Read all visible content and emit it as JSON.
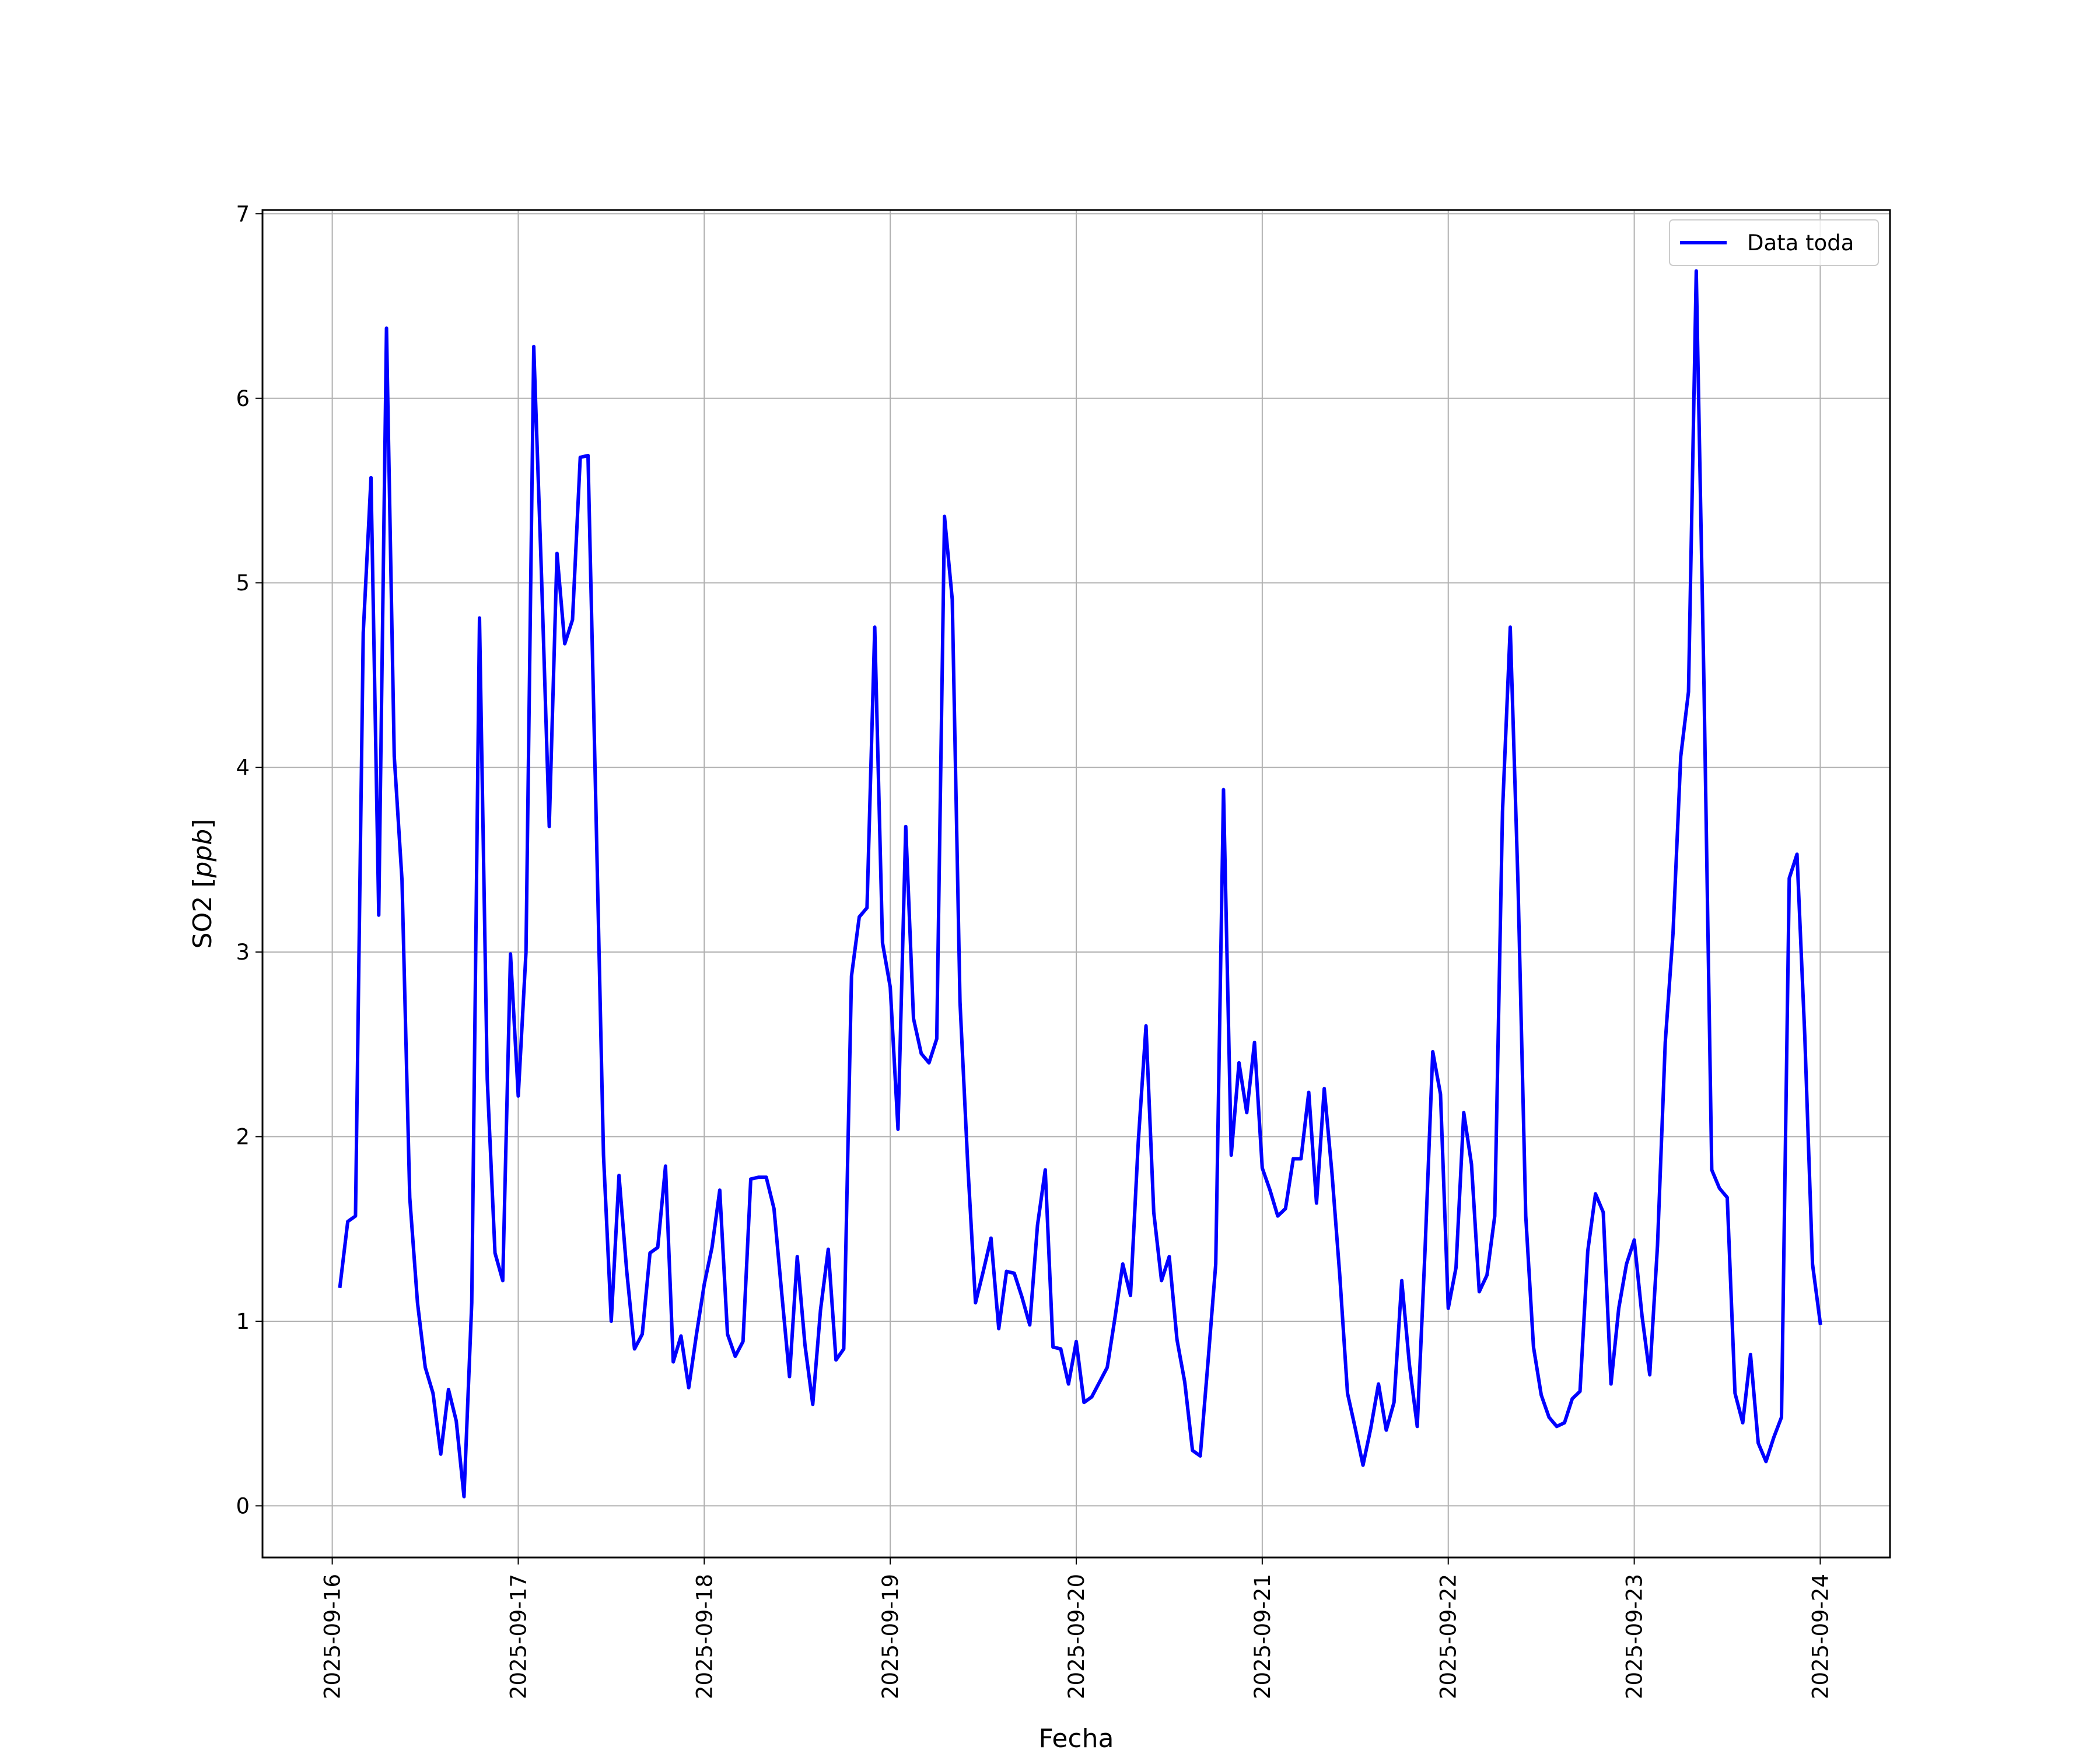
{
  "chart_data": {
    "type": "line",
    "xlabel": "Fecha",
    "ylabel": "SO2 [ppb]",
    "ylabel_prefix": "SO2 [",
    "ylabel_unit": "ppb",
    "ylabel_suffix": "]",
    "x_type": "date",
    "xlim": [
      "2025-09-15 15:00",
      "2025-09-24 09:00"
    ],
    "ylim": [
      -0.28,
      7.02
    ],
    "x_ticks": [
      "2025-09-16",
      "2025-09-17",
      "2025-09-18",
      "2025-09-19",
      "2025-09-20",
      "2025-09-21",
      "2025-09-22",
      "2025-09-23",
      "2025-09-24"
    ],
    "y_ticks": [
      0,
      1,
      2,
      3,
      4,
      5,
      6,
      7
    ],
    "grid": true,
    "legend_position": "top-right",
    "line_color": "#0000ff",
    "series": [
      {
        "name": "Data toda",
        "color": "#0000ff",
        "start": "2025-09-16 01:00",
        "step_hours": 1,
        "values": [
          1.19,
          1.54,
          1.57,
          4.73,
          5.57,
          3.2,
          6.38,
          4.06,
          3.39,
          1.67,
          1.1,
          0.75,
          0.61,
          0.28,
          0.63,
          0.46,
          0.05,
          1.1,
          4.81,
          2.31,
          1.37,
          1.22,
          2.99,
          2.22,
          3.0,
          6.28,
          5.04,
          3.68,
          5.16,
          4.67,
          4.8,
          5.68,
          5.69,
          3.82,
          1.9,
          1.0,
          1.79,
          1.27,
          0.85,
          0.93,
          1.37,
          1.4,
          1.84,
          0.78,
          0.92,
          0.64,
          0.93,
          1.2,
          1.4,
          1.71,
          0.93,
          0.81,
          0.89,
          1.77,
          1.78,
          1.78,
          1.61,
          1.15,
          0.7,
          1.35,
          0.87,
          0.55,
          1.06,
          1.39,
          0.79,
          0.85,
          2.87,
          3.19,
          3.24,
          4.76,
          3.05,
          2.81,
          2.04,
          3.68,
          2.64,
          2.45,
          2.4,
          2.53,
          5.36,
          4.91,
          2.73,
          1.85,
          1.1,
          1.27,
          1.45,
          0.96,
          1.27,
          1.26,
          1.13,
          0.98,
          1.52,
          1.82,
          0.86,
          0.85,
          0.66,
          0.89,
          0.56,
          0.59,
          0.67,
          0.75,
          1.02,
          1.31,
          1.14,
          1.97,
          2.6,
          1.59,
          1.22,
          1.35,
          0.9,
          0.67,
          0.3,
          0.27,
          0.78,
          1.31,
          3.88,
          1.9,
          2.4,
          2.13,
          2.51,
          1.83,
          1.71,
          1.57,
          1.61,
          1.88,
          1.88,
          2.24,
          1.64,
          2.26,
          1.8,
          1.25,
          0.61,
          0.42,
          0.22,
          0.42,
          0.66,
          0.41,
          0.56,
          1.22,
          0.76,
          0.43,
          1.38,
          2.46,
          2.23,
          1.07,
          1.29,
          2.13,
          1.85,
          1.16,
          1.25,
          1.57,
          3.76,
          4.76,
          3.37,
          1.57,
          0.86,
          0.6,
          0.48,
          0.43,
          0.45,
          0.58,
          0.62,
          1.38,
          1.69,
          1.59,
          0.66,
          1.07,
          1.31,
          1.44,
          1.03,
          0.71,
          1.41,
          2.51,
          3.1,
          4.06,
          4.41,
          6.69,
          4.44,
          1.82,
          1.72,
          1.67,
          0.61,
          0.45,
          0.82,
          0.34,
          0.24,
          0.37,
          0.48,
          3.4,
          3.53,
          2.55,
          1.31,
          0.99
        ]
      }
    ]
  }
}
